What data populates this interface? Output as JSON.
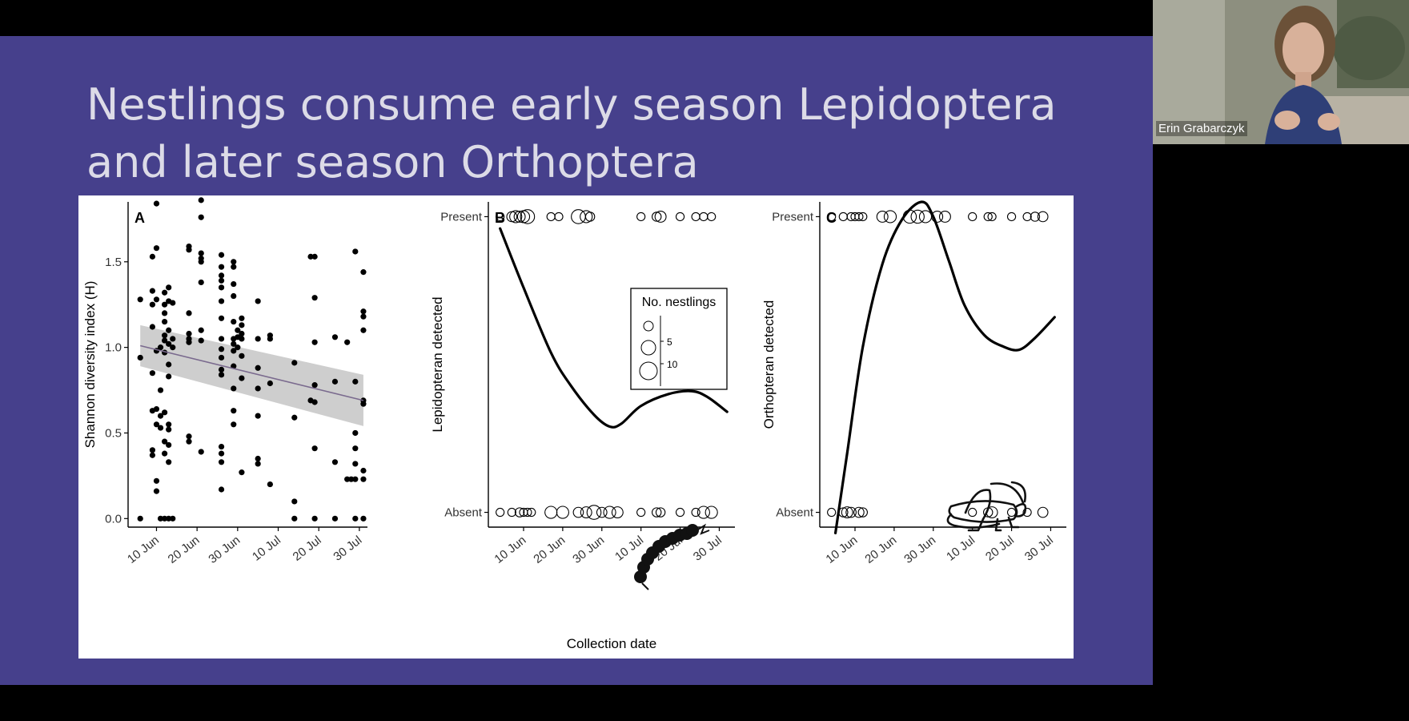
{
  "slide": {
    "title_line1": "Nestlings consume early season Lepidoptera",
    "title_line2": "and later season Orthoptera",
    "background": "#46408c"
  },
  "video": {
    "participant_name": "Erin Grabarczyk"
  },
  "chart_data": [
    {
      "panel": "A",
      "type": "scatter",
      "ylabel": "Shannon diversity index (H)",
      "xlabel": "",
      "yticks": [
        "0.0",
        "0.5",
        "1.0",
        "1.5"
      ],
      "xticks": [
        "10 Jun",
        "20 Jun",
        "30 Jun",
        "10 Jul",
        "20 Jul",
        "30 Jul"
      ],
      "ylim": [
        -0.05,
        1.85
      ],
      "x_dates": [
        "2020-06-03",
        "2020-08-01"
      ],
      "fit_line": {
        "x": [
          "2020-06-06",
          "2020-07-31"
        ],
        "y": [
          1.01,
          0.69
        ],
        "ci_half_width_start": 0.12,
        "ci_half_width_end": 0.15
      },
      "points": [
        [
          "2020-06-06",
          0.94
        ],
        [
          "2020-06-06",
          1.28
        ],
        [
          "2020-06-06",
          0.0
        ],
        [
          "2020-06-09",
          1.25
        ],
        [
          "2020-06-09",
          1.33
        ],
        [
          "2020-06-09",
          1.53
        ],
        [
          "2020-06-09",
          1.12
        ],
        [
          "2020-06-09",
          0.85
        ],
        [
          "2020-06-09",
          0.63
        ],
        [
          "2020-06-09",
          0.37
        ],
        [
          "2020-06-09",
          0.4
        ],
        [
          "2020-06-10",
          1.84
        ],
        [
          "2020-06-10",
          1.58
        ],
        [
          "2020-06-10",
          1.28
        ],
        [
          "2020-06-10",
          0.98
        ],
        [
          "2020-06-10",
          0.64
        ],
        [
          "2020-06-10",
          0.55
        ],
        [
          "2020-06-10",
          0.22
        ],
        [
          "2020-06-10",
          0.16
        ],
        [
          "2020-06-11",
          1.0
        ],
        [
          "2020-06-11",
          0.75
        ],
        [
          "2020-06-11",
          0.6
        ],
        [
          "2020-06-11",
          0.53
        ],
        [
          "2020-06-11",
          0.0
        ],
        [
          "2020-06-12",
          1.32
        ],
        [
          "2020-06-12",
          1.25
        ],
        [
          "2020-06-12",
          1.2
        ],
        [
          "2020-06-12",
          1.15
        ],
        [
          "2020-06-12",
          1.07
        ],
        [
          "2020-06-12",
          1.04
        ],
        [
          "2020-06-12",
          0.97
        ],
        [
          "2020-06-12",
          0.62
        ],
        [
          "2020-06-12",
          0.45
        ],
        [
          "2020-06-12",
          0.38
        ],
        [
          "2020-06-12",
          0.0
        ],
        [
          "2020-06-13",
          1.35
        ],
        [
          "2020-06-13",
          1.27
        ],
        [
          "2020-06-13",
          1.1
        ],
        [
          "2020-06-13",
          1.02
        ],
        [
          "2020-06-13",
          0.9
        ],
        [
          "2020-06-13",
          0.83
        ],
        [
          "2020-06-13",
          0.55
        ],
        [
          "2020-06-13",
          0.52
        ],
        [
          "2020-06-13",
          0.43
        ],
        [
          "2020-06-13",
          0.33
        ],
        [
          "2020-06-13",
          0.0
        ],
        [
          "2020-06-14",
          1.26
        ],
        [
          "2020-06-14",
          1.05
        ],
        [
          "2020-06-14",
          1.0
        ],
        [
          "2020-06-14",
          0.0
        ],
        [
          "2020-06-18",
          1.59
        ],
        [
          "2020-06-18",
          1.57
        ],
        [
          "2020-06-18",
          1.2
        ],
        [
          "2020-06-18",
          1.08
        ],
        [
          "2020-06-18",
          1.05
        ],
        [
          "2020-06-18",
          1.03
        ],
        [
          "2020-06-18",
          0.48
        ],
        [
          "2020-06-18",
          0.45
        ],
        [
          "2020-06-21",
          1.86
        ],
        [
          "2020-06-21",
          1.76
        ],
        [
          "2020-06-21",
          1.55
        ],
        [
          "2020-06-21",
          1.52
        ],
        [
          "2020-06-21",
          1.5
        ],
        [
          "2020-06-21",
          1.38
        ],
        [
          "2020-06-21",
          1.1
        ],
        [
          "2020-06-21",
          1.04
        ],
        [
          "2020-06-21",
          0.39
        ],
        [
          "2020-06-26",
          1.54
        ],
        [
          "2020-06-26",
          1.47
        ],
        [
          "2020-06-26",
          1.42
        ],
        [
          "2020-06-26",
          1.39
        ],
        [
          "2020-06-26",
          1.35
        ],
        [
          "2020-06-26",
          1.27
        ],
        [
          "2020-06-26",
          1.17
        ],
        [
          "2020-06-26",
          1.05
        ],
        [
          "2020-06-26",
          0.99
        ],
        [
          "2020-06-26",
          0.94
        ],
        [
          "2020-06-26",
          0.87
        ],
        [
          "2020-06-26",
          0.84
        ],
        [
          "2020-06-26",
          0.42
        ],
        [
          "2020-06-26",
          0.38
        ],
        [
          "2020-06-26",
          0.33
        ],
        [
          "2020-06-26",
          0.17
        ],
        [
          "2020-06-29",
          1.5
        ],
        [
          "2020-06-29",
          1.47
        ],
        [
          "2020-06-29",
          1.37
        ],
        [
          "2020-06-29",
          1.3
        ],
        [
          "2020-06-29",
          1.15
        ],
        [
          "2020-06-29",
          1.05
        ],
        [
          "2020-06-29",
          1.02
        ],
        [
          "2020-06-29",
          0.98
        ],
        [
          "2020-06-29",
          0.89
        ],
        [
          "2020-06-29",
          0.76
        ],
        [
          "2020-06-29",
          0.63
        ],
        [
          "2020-06-29",
          0.55
        ],
        [
          "2020-06-30",
          1.1
        ],
        [
          "2020-06-30",
          1.06
        ],
        [
          "2020-06-30",
          1.0
        ],
        [
          "2020-07-01",
          1.17
        ],
        [
          "2020-07-01",
          1.13
        ],
        [
          "2020-07-01",
          1.08
        ],
        [
          "2020-07-01",
          1.05
        ],
        [
          "2020-07-01",
          0.95
        ],
        [
          "2020-07-01",
          0.82
        ],
        [
          "2020-07-01",
          0.27
        ],
        [
          "2020-07-05",
          1.27
        ],
        [
          "2020-07-05",
          1.05
        ],
        [
          "2020-07-05",
          0.88
        ],
        [
          "2020-07-05",
          0.76
        ],
        [
          "2020-07-05",
          0.6
        ],
        [
          "2020-07-05",
          0.35
        ],
        [
          "2020-07-05",
          0.32
        ],
        [
          "2020-07-08",
          1.07
        ],
        [
          "2020-07-08",
          1.05
        ],
        [
          "2020-07-08",
          0.79
        ],
        [
          "2020-07-08",
          0.2
        ],
        [
          "2020-07-14",
          0.91
        ],
        [
          "2020-07-14",
          0.59
        ],
        [
          "2020-07-14",
          0.1
        ],
        [
          "2020-07-14",
          0.0
        ],
        [
          "2020-07-18",
          1.53
        ],
        [
          "2020-07-18",
          0.69
        ],
        [
          "2020-07-19",
          1.53
        ],
        [
          "2020-07-19",
          1.29
        ],
        [
          "2020-07-19",
          1.03
        ],
        [
          "2020-07-19",
          0.78
        ],
        [
          "2020-07-19",
          0.68
        ],
        [
          "2020-07-19",
          0.41
        ],
        [
          "2020-07-19",
          0.0
        ],
        [
          "2020-07-24",
          1.06
        ],
        [
          "2020-07-24",
          0.8
        ],
        [
          "2020-07-24",
          0.33
        ],
        [
          "2020-07-24",
          0.0
        ],
        [
          "2020-07-27",
          1.03
        ],
        [
          "2020-07-27",
          0.23
        ],
        [
          "2020-07-28",
          0.23
        ],
        [
          "2020-07-29",
          1.56
        ],
        [
          "2020-07-29",
          0.8
        ],
        [
          "2020-07-29",
          0.5
        ],
        [
          "2020-07-29",
          0.41
        ],
        [
          "2020-07-29",
          0.32
        ],
        [
          "2020-07-29",
          0.0
        ],
        [
          "2020-07-29",
          0.23
        ],
        [
          "2020-07-31",
          1.44
        ],
        [
          "2020-07-31",
          1.21
        ],
        [
          "2020-07-31",
          1.18
        ],
        [
          "2020-07-31",
          1.1
        ],
        [
          "2020-07-31",
          0.69
        ],
        [
          "2020-07-31",
          0.67
        ],
        [
          "2020-07-31",
          0.28
        ],
        [
          "2020-07-31",
          0.23
        ],
        [
          "2020-07-31",
          0.0
        ]
      ]
    },
    {
      "panel": "B",
      "type": "line",
      "ylabel": "Lepidopteran detected",
      "xlabel": "Collection date",
      "yticks": [
        "Absent",
        "Present"
      ],
      "xticks": [
        "10 Jun",
        "20 Jun",
        "30 Jun",
        "10 Jul",
        "20 Jul",
        "30 Jul"
      ],
      "ylim": [
        -0.05,
        1.05
      ],
      "x_dates": [
        "2020-06-01",
        "2020-08-03"
      ],
      "legend": {
        "title": "No. nestlings",
        "entries": [
          "5",
          "10"
        ],
        "position": "top-right"
      },
      "curve": {
        "x": [
          "2020-06-04",
          "2020-06-10",
          "2020-06-17",
          "2020-06-22",
          "2020-06-28",
          "2020-07-02",
          "2020-07-05",
          "2020-07-10",
          "2020-07-17",
          "2020-07-23",
          "2020-07-27",
          "2020-08-01"
        ],
        "y": [
          0.96,
          0.76,
          0.54,
          0.43,
          0.33,
          0.29,
          0.3,
          0.36,
          0.4,
          0.41,
          0.39,
          0.34
        ]
      },
      "present": [
        [
          "2020-06-04",
          3
        ],
        [
          "2020-06-07",
          5
        ],
        [
          "2020-06-08",
          7
        ],
        [
          "2020-06-09",
          6
        ],
        [
          "2020-06-10",
          7
        ],
        [
          "2020-06-11",
          9
        ],
        [
          "2020-06-17",
          3
        ],
        [
          "2020-06-19",
          3
        ],
        [
          "2020-06-24",
          9
        ],
        [
          "2020-06-26",
          7
        ],
        [
          "2020-06-27",
          4
        ],
        [
          "2020-07-10",
          3
        ],
        [
          "2020-07-14",
          4
        ],
        [
          "2020-07-15",
          6
        ],
        [
          "2020-07-20",
          3
        ],
        [
          "2020-07-24",
          3
        ],
        [
          "2020-07-26",
          3
        ],
        [
          "2020-07-28",
          3
        ]
      ],
      "absent": [
        [
          "2020-06-04",
          3
        ],
        [
          "2020-06-07",
          3
        ],
        [
          "2020-06-09",
          4
        ],
        [
          "2020-06-10",
          3
        ],
        [
          "2020-06-11",
          3
        ],
        [
          "2020-06-12",
          3
        ],
        [
          "2020-06-17",
          7
        ],
        [
          "2020-06-20",
          7
        ],
        [
          "2020-06-24",
          5
        ],
        [
          "2020-06-26",
          6
        ],
        [
          "2020-06-28",
          9
        ],
        [
          "2020-06-30",
          5
        ],
        [
          "2020-07-02",
          7
        ],
        [
          "2020-07-04",
          6
        ],
        [
          "2020-07-10",
          3
        ],
        [
          "2020-07-14",
          4
        ],
        [
          "2020-07-15",
          4
        ],
        [
          "2020-07-20",
          3
        ],
        [
          "2020-07-24",
          3
        ],
        [
          "2020-07-26",
          7
        ],
        [
          "2020-07-28",
          7
        ]
      ]
    },
    {
      "panel": "C",
      "type": "line",
      "ylabel": "Orthopteran detected",
      "xlabel": "",
      "yticks": [
        "Absent",
        "Present"
      ],
      "xticks": [
        "10 Jun",
        "20 Jun",
        "30 Jun",
        "10 Jul",
        "20 Jul",
        "30 Jul"
      ],
      "ylim": [
        -0.05,
        1.05
      ],
      "x_dates": [
        "2020-06-01",
        "2020-08-03"
      ],
      "curve": {
        "x": [
          "2020-06-05",
          "2020-06-08",
          "2020-06-12",
          "2020-06-17",
          "2020-06-22",
          "2020-06-27",
          "2020-06-30",
          "2020-07-04",
          "2020-07-08",
          "2020-07-13",
          "2020-07-18",
          "2020-07-22",
          "2020-07-26",
          "2020-07-31"
        ],
        "y": [
          -0.07,
          0.2,
          0.56,
          0.84,
          0.99,
          1.05,
          1.0,
          0.85,
          0.7,
          0.6,
          0.56,
          0.55,
          0.59,
          0.66
        ]
      },
      "present": [
        [
          "2020-06-04",
          3
        ],
        [
          "2020-06-07",
          3
        ],
        [
          "2020-06-09",
          3
        ],
        [
          "2020-06-10",
          3
        ],
        [
          "2020-06-11",
          3
        ],
        [
          "2020-06-12",
          3
        ],
        [
          "2020-06-17",
          6
        ],
        [
          "2020-06-19",
          7
        ],
        [
          "2020-06-24",
          8
        ],
        [
          "2020-06-26",
          8
        ],
        [
          "2020-06-28",
          7
        ],
        [
          "2020-07-01",
          6
        ],
        [
          "2020-07-03",
          6
        ],
        [
          "2020-07-10",
          3
        ],
        [
          "2020-07-14",
          3
        ],
        [
          "2020-07-15",
          3
        ],
        [
          "2020-07-20",
          3
        ],
        [
          "2020-07-24",
          3
        ],
        [
          "2020-07-26",
          4
        ],
        [
          "2020-07-28",
          5
        ]
      ],
      "absent": [
        [
          "2020-06-04",
          3
        ],
        [
          "2020-06-07",
          4
        ],
        [
          "2020-06-08",
          6
        ],
        [
          "2020-06-09",
          5
        ],
        [
          "2020-06-11",
          5
        ],
        [
          "2020-06-12",
          4
        ],
        [
          "2020-07-10",
          3
        ],
        [
          "2020-07-14",
          4
        ],
        [
          "2020-07-15",
          6
        ],
        [
          "2020-07-20",
          3
        ],
        [
          "2020-07-24",
          3
        ],
        [
          "2020-07-28",
          5
        ]
      ]
    }
  ]
}
